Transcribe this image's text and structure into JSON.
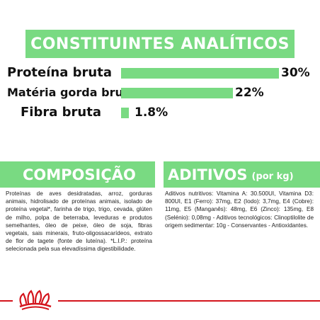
{
  "analytic": {
    "title": "CONSTITUINTES ANALÍTICOS",
    "items": [
      {
        "label": "Proteína bruta",
        "value": "30%",
        "percent": 30
      },
      {
        "label": "Matéria gorda bruta",
        "value": "22%",
        "percent": 22
      },
      {
        "label": "Fibra bruta",
        "value": "1.8%",
        "percent": 1.8
      }
    ]
  },
  "composition": {
    "title": "COMPOSIÇÃO",
    "text": "Proteínas de aves desidratadas, arroz, gorduras animais, hidrolisado de proteínas animais, isolado de proteína vegetal*, farinha de trigo, trigo, cevada, glúten de milho, polpa de beterraba, leveduras e produtos semelhantes, óleo de peixe, óleo de soja, fibras vegetais, sais minerais, fruto-oligossacarídeos, extrato de flor de tagete (fonte de luteína). *L.I.P.: proteína selecionada pela sua elevadíssima digestibilidade."
  },
  "additives": {
    "title": "ADITIVOS",
    "subtitle": "(por kg)",
    "text": "Aditivos nutritivos: Vitamina A: 30.500UI, Vitamina D3: 800UI, E1 (Ferro): 37mg, E2 (Iodo): 3,7mg, E4 (Cobre): 11mg, E5 (Manganês): 48mg, E6 (Zinco): 135mg, E8 (Selénio): 0,08mg - Aditivos tecnológicos: Clinoptilolite de origem sedimentar: 10g - Conservantes - Antioxidantes."
  },
  "colors": {
    "accent": "#79da82",
    "brand": "#d4141c"
  },
  "logo": "royal-canin-crown-logo"
}
